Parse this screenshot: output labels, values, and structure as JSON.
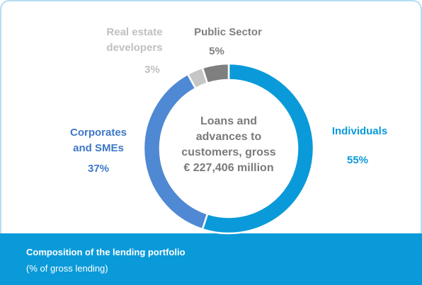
{
  "chart_data": {
    "type": "donut",
    "categories": [
      "Individuals",
      "Corporates and SMEs",
      "Real estate developers",
      "Public Sector"
    ],
    "values": [
      55,
      37,
      3,
      5
    ],
    "value_labels": [
      "55%",
      "37%",
      "3%",
      "5%"
    ],
    "colors": [
      "#0a9ad9",
      "#4f88d3",
      "#c6c6c6",
      "#7f7f7f"
    ],
    "label_colors": [
      "#0a9ad9",
      "#3f78c6",
      "#c0c0c0",
      "#7f7f7f"
    ],
    "center_label": [
      "Loans and",
      "advances to",
      "customers, gross",
      "€ 227,406 million"
    ],
    "footer": {
      "title": "Composition of the lending portfolio",
      "subtitle": "(% of gross lending)"
    }
  }
}
